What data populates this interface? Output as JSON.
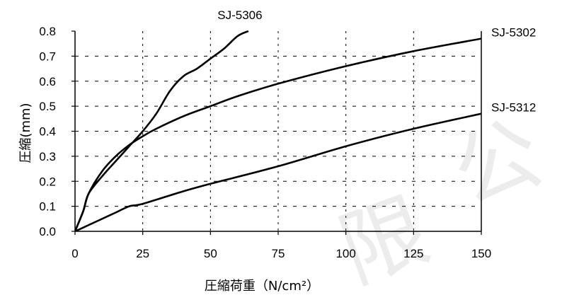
{
  "chart_data": {
    "type": "line",
    "xlabel": "圧縮荷重（N/cm²）",
    "ylabel": "圧縮(mm)",
    "xlim": [
      0,
      150
    ],
    "ylim": [
      0,
      0.8
    ],
    "xticks": [
      "0",
      "25",
      "50",
      "75",
      "100",
      "125",
      "150"
    ],
    "yticks": [
      "0.0",
      "0.1",
      "0.2",
      "0.3",
      "0.4",
      "0.5",
      "0.6",
      "0.7",
      "0.8"
    ],
    "grid": true,
    "series": [
      {
        "name": "SJ-5306",
        "points": [
          [
            0,
            0
          ],
          [
            3,
            0.08
          ],
          [
            5,
            0.15
          ],
          [
            10,
            0.22
          ],
          [
            15,
            0.28
          ],
          [
            20,
            0.34
          ],
          [
            25,
            0.4
          ],
          [
            30,
            0.47
          ],
          [
            35,
            0.56
          ],
          [
            40,
            0.62
          ],
          [
            45,
            0.65
          ],
          [
            50,
            0.69
          ],
          [
            55,
            0.73
          ],
          [
            60,
            0.78
          ],
          [
            64,
            0.8
          ]
        ]
      },
      {
        "name": "SJ-5302",
        "points": [
          [
            0,
            0
          ],
          [
            3,
            0.08
          ],
          [
            5,
            0.15
          ],
          [
            10,
            0.24
          ],
          [
            15,
            0.3
          ],
          [
            20,
            0.345
          ],
          [
            25,
            0.38
          ],
          [
            30,
            0.41
          ],
          [
            40,
            0.46
          ],
          [
            50,
            0.5
          ],
          [
            60,
            0.54
          ],
          [
            75,
            0.59
          ],
          [
            100,
            0.66
          ],
          [
            125,
            0.72
          ],
          [
            150,
            0.77
          ]
        ]
      },
      {
        "name": "SJ-5312",
        "points": [
          [
            0,
            0
          ],
          [
            5,
            0.025
          ],
          [
            10,
            0.05
          ],
          [
            15,
            0.075
          ],
          [
            20,
            0.1
          ],
          [
            25,
            0.11
          ],
          [
            40,
            0.16
          ],
          [
            50,
            0.19
          ],
          [
            75,
            0.26
          ],
          [
            100,
            0.34
          ],
          [
            125,
            0.41
          ],
          [
            150,
            0.47
          ]
        ]
      }
    ]
  },
  "watermark": {
    "text": "限公",
    "color": "#ececec"
  }
}
